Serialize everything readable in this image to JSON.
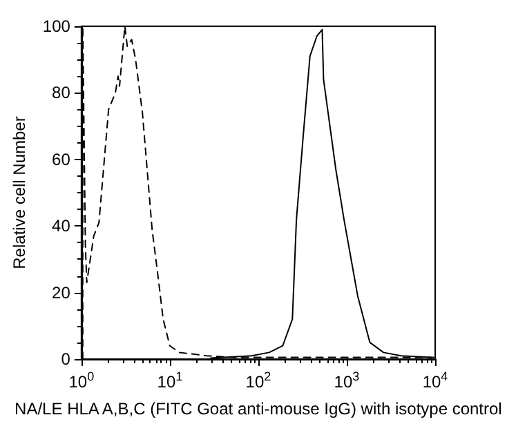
{
  "chart_data": {
    "type": "line",
    "xlabel": "NA/LE HLA A,B,C (FITC Goat anti-mouse IgG) with isotype control",
    "ylabel": "Relative cell Number",
    "log": "x",
    "xlim": [
      1,
      10000
    ],
    "xticks": [
      {
        "value": 1,
        "label": "10$^{0}$"
      },
      {
        "value": 10,
        "label": "10$^{1}$"
      },
      {
        "value": 100,
        "label": "10$^{2}$"
      },
      {
        "value": 1000,
        "label": "10$^{3}$"
      },
      {
        "value": 10000,
        "label": "10$^{4}$"
      }
    ],
    "ylim": [
      0,
      100
    ],
    "yticks": [
      0,
      20,
      40,
      60,
      80,
      100
    ],
    "grid": false,
    "marker": "none",
    "series": [
      {
        "color": "#000000",
        "line_style": "dashed",
        "x": [
          1.036,
          1.036,
          1.11,
          1.15,
          1.38,
          1.58,
          2.03,
          2.42,
          2.6,
          2.7,
          3.1,
          3.3,
          3.7,
          4.1,
          4.9,
          6.3,
          7.5,
          8.4,
          10,
          12.8,
          26,
          53,
          170,
          1400,
          9600
        ],
        "values": [
          0,
          100,
          34,
          23,
          37,
          41,
          75,
          80,
          85,
          82,
          100,
          94,
          96,
          90,
          74,
          39,
          23,
          12,
          4,
          2,
          1,
          0.5,
          0.5,
          0.5,
          0.5
        ]
      },
      {
        "color": "#000000",
        "line_style": "solid",
        "x": [
          29,
          84,
          133,
          189,
          243,
          270,
          322,
          384,
          459,
          528,
          547,
          753,
          931,
          1330,
          1826,
          2600,
          4125,
          9000
        ],
        "values": [
          0.3,
          1,
          2,
          4,
          12,
          42,
          67,
          91,
          97,
          99,
          84,
          57,
          42,
          19,
          5,
          2,
          1,
          0.5
        ]
      }
    ]
  }
}
